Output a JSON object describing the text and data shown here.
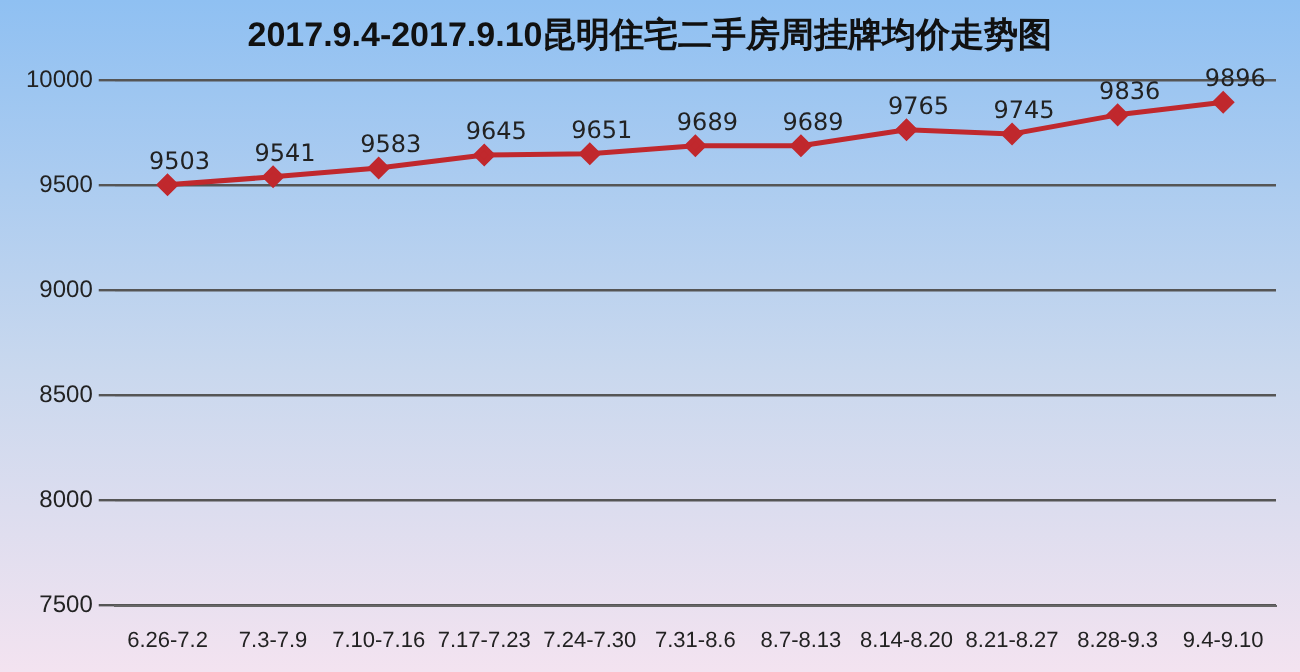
{
  "chart_data": {
    "type": "line",
    "title": "2017.9.4-2017.9.10昆明住宅二手房周挂牌均价走势图",
    "categories": [
      "6.26-7.2",
      "7.3-7.9",
      "7.10-7.16",
      "7.17-7.23",
      "7.24-7.30",
      "7.31-8.6",
      "8.7-8.13",
      "8.14-8.20",
      "8.21-8.27",
      "8.28-9.3",
      "9.4-9.10"
    ],
    "series": [
      {
        "color": "#c0282d",
        "values": [
          9503,
          9541,
          9583,
          9645,
          9651,
          9689,
          9689,
          9765,
          9745,
          9836,
          9896
        ]
      }
    ],
    "ylim": [
      7500,
      10000
    ],
    "yticks": [
      7500,
      8000,
      8500,
      9000,
      9500,
      10000
    ],
    "grid": "y",
    "legend": false,
    "marker": "diamond",
    "data_labels": true
  }
}
